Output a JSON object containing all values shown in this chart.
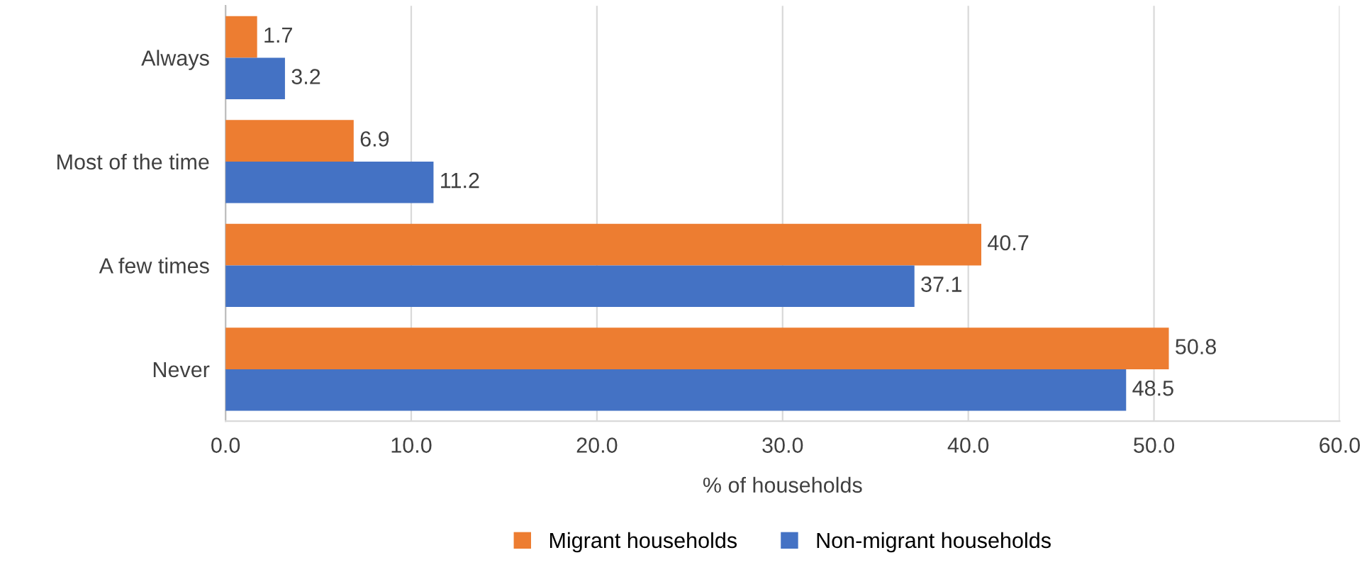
{
  "chart_data": {
    "type": "bar",
    "orientation": "horizontal",
    "xlabel": "% of households",
    "categories": [
      "Always",
      "Most of the time",
      "A few times",
      "Never"
    ],
    "series": [
      {
        "name": "Migrant households",
        "color": "#ed7d31",
        "values": [
          1.7,
          6.9,
          40.7,
          50.8
        ]
      },
      {
        "name": "Non-migrant households",
        "color": "#4472c4",
        "values": [
          3.2,
          11.2,
          37.1,
          48.5
        ]
      }
    ],
    "xlim": [
      0,
      60
    ],
    "xticks": [
      {
        "value": 0,
        "label": "0.0"
      },
      {
        "value": 10,
        "label": "10.0"
      },
      {
        "value": 20,
        "label": "20.0"
      },
      {
        "value": 30,
        "label": "30.0"
      },
      {
        "value": 40,
        "label": "40.0"
      },
      {
        "value": 50,
        "label": "50.0"
      },
      {
        "value": 60,
        "label": "60.0"
      }
    ],
    "grid": "x",
    "legend": "bottom",
    "data_labels": true
  }
}
